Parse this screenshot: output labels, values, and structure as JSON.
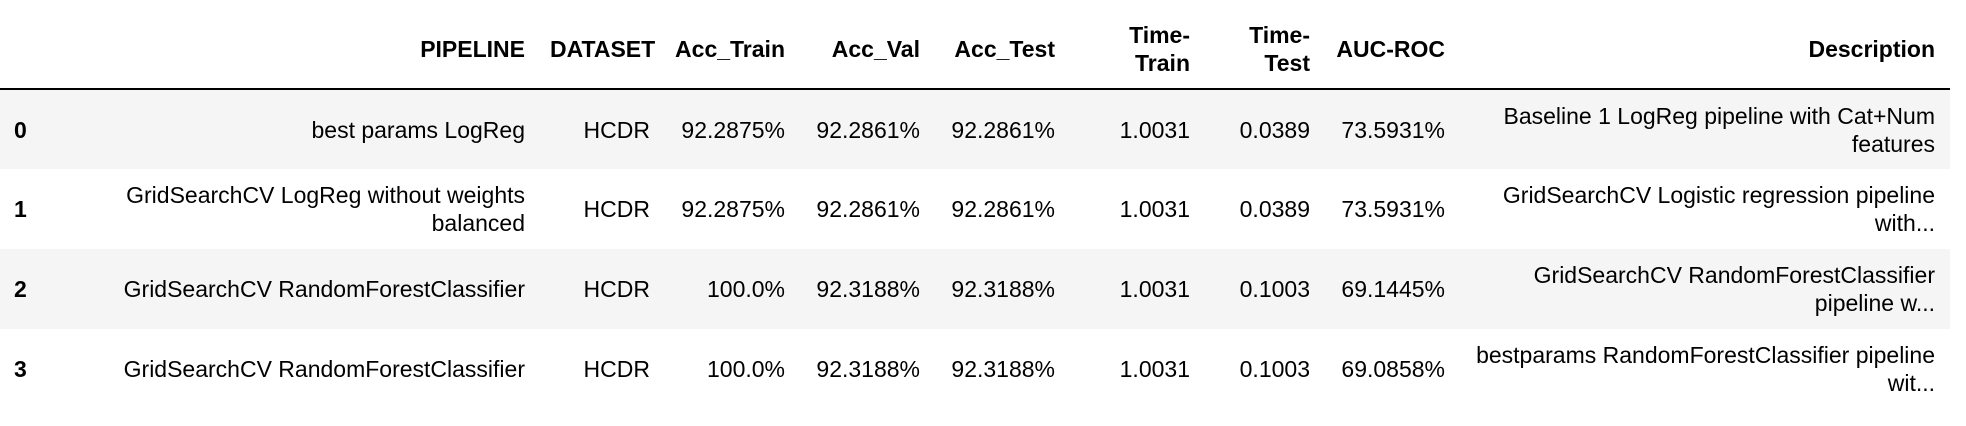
{
  "table": {
    "index_header": "",
    "columns": [
      "PIPELINE",
      "DATASET",
      "Acc_Train",
      "Acc_Val",
      "Acc_Test",
      "Time-Train",
      "Time-Test",
      "AUC-ROC",
      "Description"
    ],
    "rows": [
      {
        "index": "0",
        "cells": [
          "best params LogReg",
          "HCDR",
          "92.2875%",
          "92.2861%",
          "92.2861%",
          "1.0031",
          "0.0389",
          "73.5931%",
          "Baseline 1 LogReg pipeline with Cat+Num features"
        ]
      },
      {
        "index": "1",
        "cells": [
          "GridSearchCV LogReg without weights balanced",
          "HCDR",
          "92.2875%",
          "92.2861%",
          "92.2861%",
          "1.0031",
          "0.0389",
          "73.5931%",
          "GridSearchCV Logistic regression pipeline with..."
        ]
      },
      {
        "index": "2",
        "cells": [
          "GridSearchCV RandomForestClassifier",
          "HCDR",
          "100.0%",
          "92.3188%",
          "92.3188%",
          "1.0031",
          "0.1003",
          "69.1445%",
          "GridSearchCV RandomForestClassifier pipeline w..."
        ]
      },
      {
        "index": "3",
        "cells": [
          "GridSearchCV RandomForestClassifier",
          "HCDR",
          "100.0%",
          "92.3188%",
          "92.3188%",
          "1.0031",
          "0.1003",
          "69.0858%",
          "bestparams RandomForestClassifier pipeline wit..."
        ]
      }
    ]
  }
}
